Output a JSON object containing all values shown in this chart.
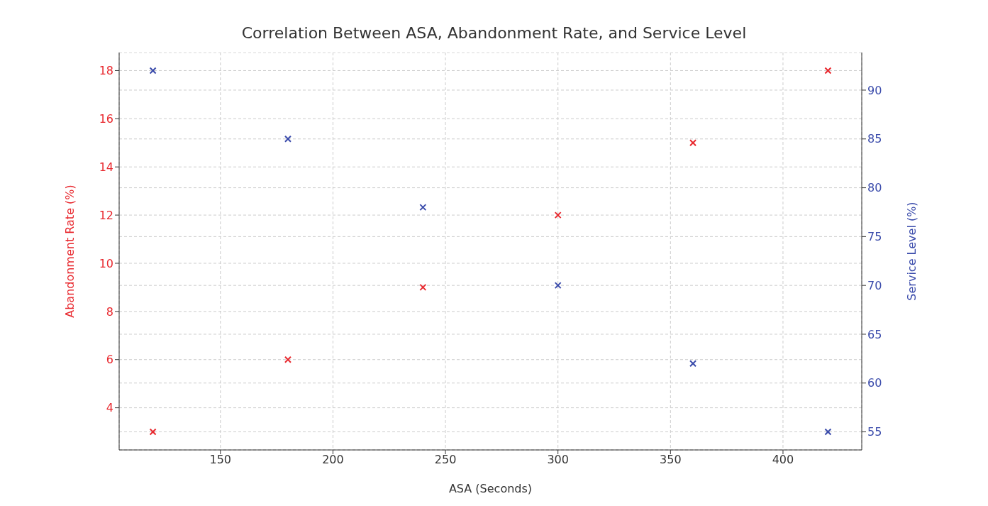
{
  "chart_data": {
    "type": "scatter",
    "title": "Correlation Between ASA, Abandonment Rate, and Service Level",
    "xlabel": "ASA (Seconds)",
    "ylabel": "Abandonment Rate (%)",
    "y2label": "Service Level (%)",
    "x": [
      120,
      180,
      240,
      300,
      360,
      420
    ],
    "series": [
      {
        "color": "#e8282e",
        "values": [
          3,
          6,
          9,
          12,
          15,
          18
        ]
      },
      {
        "color": "#3a4bab",
        "values": [
          92,
          85,
          78,
          70,
          62,
          55
        ],
        "axis": "y2"
      }
    ],
    "xlim": [
      105,
      435
    ],
    "xticks": [
      150,
      200,
      250,
      300,
      350,
      400
    ],
    "ylim": [
      2.25,
      18.75
    ],
    "yticks": [
      4,
      6,
      8,
      10,
      12,
      14,
      16,
      18
    ],
    "y2lim": [
      53.15,
      93.85
    ],
    "y2ticks": [
      55,
      60,
      65,
      70,
      75,
      80,
      85,
      90
    ],
    "grid": true,
    "marker": "cross"
  }
}
